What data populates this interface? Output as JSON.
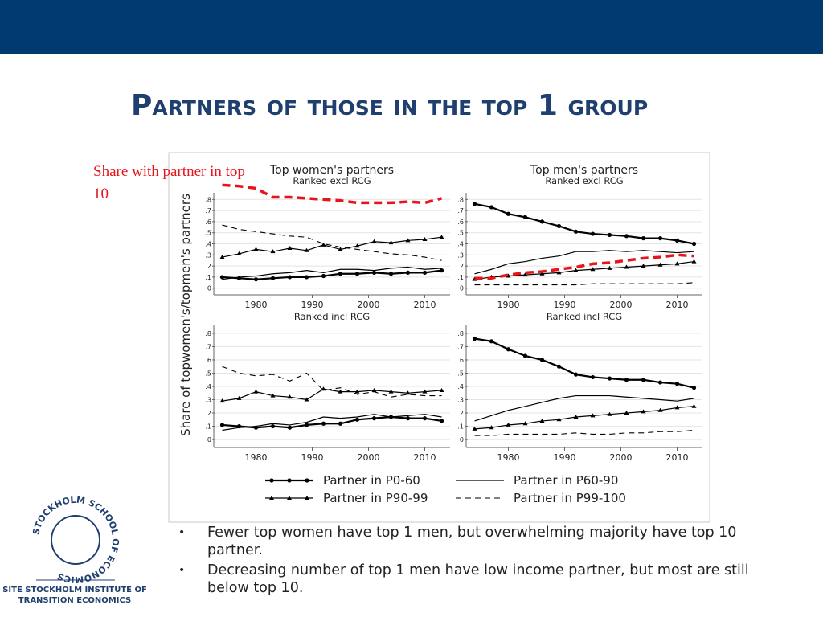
{
  "slide": {
    "title": "Partners of those in the top 1 group",
    "bullets": [
      "Fewer top women have top 1 men, but overwhelming majority have top 10 partner.",
      "Decreasing number of top 1 men have low income partner, but most are still below top 10."
    ],
    "logo": {
      "ring": "STOCKHOLM SCHOOL OF ECONOMICS",
      "name": [
        "SITE STOCKHOLM INSTITUTE OF",
        "TRANSITION ECONOMICS"
      ]
    }
  },
  "chart_data": {
    "type": "line",
    "ylabel": "Share of topwomen's/topmen's partners",
    "x": [
      1974,
      1977,
      1980,
      1983,
      1986,
      1989,
      1992,
      1995,
      1998,
      2001,
      2004,
      2007,
      2010,
      2013
    ],
    "xlim": [
      1972.5,
      2014.5
    ],
    "xticks": [
      1980,
      1990,
      2000,
      2010
    ],
    "ylim": [
      -0.06,
      0.86
    ],
    "yticks": [
      0,
      {
        "value": 0.1,
        "label": ".1"
      },
      {
        "value": 0.2,
        "label": ".2"
      },
      {
        "value": 0.3,
        "label": ".3"
      },
      {
        "value": 0.4,
        "label": ".4"
      },
      {
        "value": 0.5,
        "label": ".5"
      },
      {
        "value": 0.6,
        "label": ".6"
      },
      {
        "value": 0.7,
        "label": ".7"
      },
      {
        "value": 0.8,
        "label": ".8"
      }
    ],
    "grid": true,
    "series": [
      {
        "name": "Partner in P0-60",
        "color": "#000000",
        "dash": "none",
        "width": 2.2,
        "marker": "circle"
      },
      {
        "name": "Partner in P60-90",
        "color": "#000000",
        "dash": "none",
        "width": 1.2,
        "marker": null
      },
      {
        "name": "Partner in P90-99",
        "color": "#000000",
        "dash": "none",
        "width": 1.2,
        "marker": "triangle"
      },
      {
        "name": "Partner in P99-100",
        "color": "#000000",
        "dash": "7 5",
        "width": 1.1,
        "marker": null
      },
      {
        "name": "Share with partner in top 10",
        "color": "#e8141c",
        "dash": "10 6",
        "width": 3.5,
        "marker": null
      }
    ],
    "panels": [
      {
        "title": "Top women's partners",
        "subtitle": "Ranked excl RCG",
        "values": [
          [
            0.1,
            0.09,
            0.08,
            0.09,
            0.1,
            0.1,
            0.11,
            0.13,
            0.13,
            0.14,
            0.13,
            0.14,
            0.14,
            0.16
          ],
          [
            0.08,
            0.1,
            0.11,
            0.13,
            0.14,
            0.16,
            0.14,
            0.17,
            0.17,
            0.16,
            0.18,
            0.19,
            0.17,
            0.18
          ],
          [
            0.28,
            0.31,
            0.35,
            0.33,
            0.36,
            0.34,
            0.39,
            0.35,
            0.38,
            0.42,
            0.41,
            0.43,
            0.44,
            0.46
          ],
          [
            0.57,
            0.53,
            0.51,
            0.49,
            0.47,
            0.46,
            0.4,
            0.37,
            0.35,
            0.33,
            0.31,
            0.3,
            0.28,
            0.25
          ],
          [
            0.93,
            0.92,
            0.9,
            0.82,
            0.82,
            0.81,
            0.8,
            0.79,
            0.77,
            0.77,
            0.77,
            0.78,
            0.77,
            0.81
          ]
        ]
      },
      {
        "title": "Top men's partners",
        "subtitle": "Ranked excl RCG",
        "values": [
          [
            0.76,
            0.73,
            0.67,
            0.64,
            0.6,
            0.56,
            0.51,
            0.49,
            0.48,
            0.47,
            0.45,
            0.45,
            0.43,
            0.4
          ],
          [
            0.13,
            0.17,
            0.22,
            0.24,
            0.27,
            0.29,
            0.33,
            0.33,
            0.34,
            0.33,
            0.34,
            0.33,
            0.32,
            0.33
          ],
          [
            0.08,
            0.1,
            0.11,
            0.12,
            0.13,
            0.14,
            0.16,
            0.17,
            0.18,
            0.19,
            0.2,
            0.21,
            0.22,
            0.24
          ],
          [
            0.03,
            0.03,
            0.03,
            0.03,
            0.03,
            0.03,
            0.03,
            0.04,
            0.04,
            0.04,
            0.04,
            0.04,
            0.04,
            0.05
          ],
          [
            0.09,
            0.09,
            0.12,
            0.14,
            0.15,
            0.17,
            0.19,
            0.22,
            0.23,
            0.25,
            0.27,
            0.28,
            0.3,
            0.29
          ]
        ]
      },
      {
        "subtitle": "Ranked incl RCG",
        "values": [
          [
            0.11,
            0.1,
            0.09,
            0.1,
            0.09,
            0.11,
            0.12,
            0.12,
            0.15,
            0.16,
            0.17,
            0.16,
            0.16,
            0.14
          ],
          [
            0.07,
            0.09,
            0.1,
            0.12,
            0.11,
            0.13,
            0.17,
            0.16,
            0.17,
            0.19,
            0.17,
            0.18,
            0.19,
            0.17
          ],
          [
            0.29,
            0.31,
            0.36,
            0.33,
            0.32,
            0.3,
            0.38,
            0.36,
            0.36,
            0.37,
            0.36,
            0.35,
            0.36,
            0.37
          ],
          [
            0.55,
            0.5,
            0.48,
            0.49,
            0.44,
            0.5,
            0.37,
            0.39,
            0.34,
            0.36,
            0.32,
            0.34,
            0.33,
            0.33
          ]
        ]
      },
      {
        "subtitle": "Ranked incl RCG",
        "values": [
          [
            0.76,
            0.74,
            0.68,
            0.63,
            0.6,
            0.55,
            0.49,
            0.47,
            0.46,
            0.45,
            0.45,
            0.43,
            0.42,
            0.39
          ],
          [
            0.14,
            0.18,
            0.22,
            0.25,
            0.28,
            0.31,
            0.33,
            0.33,
            0.33,
            0.32,
            0.31,
            0.3,
            0.29,
            0.31
          ],
          [
            0.08,
            0.09,
            0.11,
            0.12,
            0.14,
            0.15,
            0.17,
            0.18,
            0.19,
            0.2,
            0.21,
            0.22,
            0.24,
            0.25
          ],
          [
            0.03,
            0.03,
            0.04,
            0.04,
            0.04,
            0.04,
            0.05,
            0.04,
            0.04,
            0.05,
            0.05,
            0.06,
            0.06,
            0.07
          ]
        ]
      }
    ]
  }
}
